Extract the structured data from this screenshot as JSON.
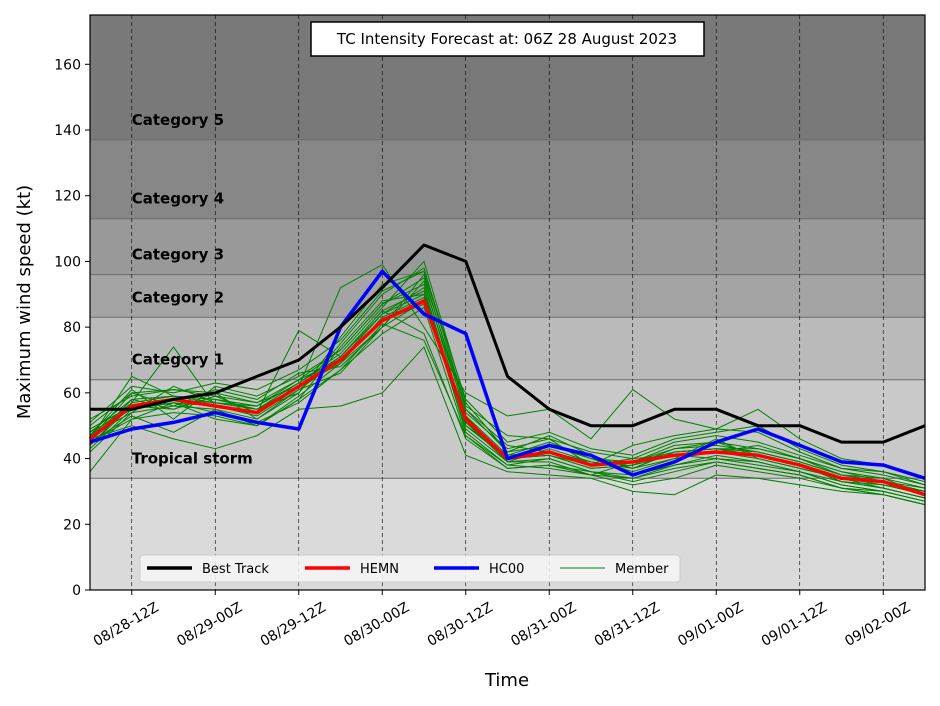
{
  "chart_data": {
    "type": "line",
    "title": "TC Intensity Forecast at: 06Z 28 August 2023",
    "xlabel": "Time",
    "ylabel": "Maximum wind speed (kt)",
    "ylim": [
      0,
      175
    ],
    "xlim": [
      -0.5,
      9.5
    ],
    "grid": "vertical dashed",
    "legend_position": "bottom-left",
    "x_ticks": [
      "08/28-12Z",
      "08/29-00Z",
      "08/29-12Z",
      "08/30-00Z",
      "08/30-12Z",
      "08/31-00Z",
      "08/31-12Z",
      "09/01-00Z",
      "09/01-12Z",
      "09/02-00Z"
    ],
    "y_ticks": [
      0,
      20,
      40,
      60,
      80,
      100,
      120,
      140,
      160
    ],
    "x": [
      -0.5,
      0,
      0.5,
      1,
      1.5,
      2,
      2.5,
      3,
      3.5,
      4,
      4.5,
      5,
      5.5,
      6,
      6.5,
      7,
      7.5,
      8,
      8.5,
      9,
      9.5
    ],
    "intensity_bands": [
      {
        "name": "Tropical storm",
        "min": 34,
        "max": 64,
        "color": "#c9c9c9"
      },
      {
        "name": "Category 1",
        "min": 64,
        "max": 83,
        "color": "#bababa"
      },
      {
        "name": "Category 2",
        "min": 83,
        "max": 96,
        "color": "#a4a4a4"
      },
      {
        "name": "Category 3",
        "min": 96,
        "max": 113,
        "color": "#999999"
      },
      {
        "name": "Category 4",
        "min": 113,
        "max": 137,
        "color": "#878787"
      },
      {
        "name": "Category 5",
        "min": 137,
        "max": 175,
        "color": "#797979"
      }
    ],
    "below_band_color": "#dadada",
    "series": [
      {
        "name": "Best Track",
        "color": "#000000",
        "width": 3,
        "values": [
          55,
          55,
          58,
          60,
          65,
          70,
          80,
          92,
          105,
          100,
          65,
          55,
          50,
          50,
          55,
          55,
          50,
          50,
          45,
          45,
          50
        ]
      },
      {
        "name": "HEMN",
        "color": "#ff0000",
        "width": 3.5,
        "values": [
          46,
          56,
          58,
          56,
          54,
          62,
          70,
          82,
          88,
          52,
          40,
          42,
          38,
          39,
          41,
          42,
          41,
          38,
          34,
          33,
          29
        ]
      },
      {
        "name": "HC00",
        "color": "#0000ff",
        "width": 3.5,
        "values": [
          45,
          49,
          51,
          54,
          51,
          49,
          80,
          97,
          84,
          78,
          40,
          44,
          41,
          35,
          39,
          45,
          49,
          44,
          39,
          38,
          34
        ]
      },
      {
        "name": "Member",
        "color": "#008000",
        "width": 1,
        "members": [
          [
            48,
            58,
            55,
            60,
            52,
            60,
            75,
            90,
            98,
            55,
            44,
            42,
            38,
            40,
            41,
            40,
            38,
            36,
            33,
            32,
            30
          ],
          [
            42,
            54,
            62,
            57,
            56,
            64,
            70,
            84,
            92,
            50,
            40,
            41,
            37,
            38,
            43,
            44,
            42,
            39,
            35,
            34,
            29
          ],
          [
            50,
            60,
            56,
            61,
            58,
            66,
            68,
            80,
            96,
            53,
            41,
            45,
            40,
            36,
            40,
            46,
            40,
            37,
            34,
            31,
            28
          ],
          [
            36,
            52,
            57,
            52,
            50,
            58,
            74,
            88,
            90,
            48,
            38,
            40,
            36,
            34,
            38,
            41,
            39,
            36,
            32,
            30,
            27
          ],
          [
            46,
            65,
            59,
            58,
            55,
            63,
            72,
            86,
            100,
            57,
            42,
            47,
            41,
            37,
            42,
            43,
            43,
            40,
            36,
            33,
            31
          ],
          [
            44,
            57,
            74,
            56,
            53,
            61,
            66,
            80,
            94,
            51,
            39,
            39,
            35,
            39,
            44,
            45,
            41,
            38,
            33,
            31,
            28
          ],
          [
            52,
            59,
            61,
            60,
            57,
            62,
            92,
            99,
            80,
            60,
            53,
            55,
            46,
            61,
            52,
            49,
            48,
            42,
            37,
            36,
            32
          ],
          [
            49,
            56,
            55,
            59,
            54,
            79,
            71,
            85,
            78,
            46,
            37,
            38,
            36,
            33,
            36,
            39,
            37,
            35,
            31,
            30,
            27
          ],
          [
            45,
            53,
            48,
            55,
            50,
            59,
            69,
            83,
            89,
            49,
            39,
            43,
            39,
            37,
            40,
            42,
            44,
            40,
            35,
            33,
            30
          ],
          [
            47,
            61,
            52,
            62,
            59,
            65,
            73,
            87,
            93,
            54,
            43,
            46,
            42,
            40,
            45,
            47,
            45,
            41,
            37,
            35,
            32
          ],
          [
            43,
            55,
            57,
            54,
            51,
            57,
            67,
            81,
            76,
            47,
            38,
            37,
            35,
            32,
            34,
            38,
            36,
            34,
            31,
            29,
            26
          ],
          [
            51,
            62,
            60,
            63,
            61,
            67,
            76,
            91,
            97,
            58,
            45,
            48,
            43,
            41,
            46,
            48,
            50,
            43,
            38,
            36,
            33
          ],
          [
            46,
            50,
            46,
            43,
            47,
            55,
            56,
            60,
            74,
            41,
            36,
            35,
            34,
            30,
            29,
            35,
            34,
            32,
            30,
            29,
            26
          ],
          [
            44,
            56,
            58,
            57,
            55,
            60,
            77,
            93,
            97,
            56,
            47,
            46,
            38,
            44,
            47,
            49,
            55,
            46,
            40,
            38,
            34
          ],
          [
            47,
            54,
            56,
            55,
            52,
            61,
            70,
            82,
            87,
            52,
            40,
            41,
            37,
            38,
            41,
            42,
            40,
            37,
            34,
            32,
            29
          ],
          [
            45,
            58,
            59,
            58,
            56,
            63,
            71,
            85,
            91,
            50,
            41,
            42,
            39,
            37,
            42,
            43,
            41,
            38,
            33,
            31,
            28
          ],
          [
            48,
            55,
            57,
            56,
            54,
            62,
            69,
            80,
            88,
            53,
            39,
            40,
            36,
            35,
            38,
            40,
            39,
            36,
            32,
            30,
            27
          ],
          [
            46,
            60,
            61,
            59,
            57,
            64,
            73,
            87,
            95,
            55,
            42,
            44,
            40,
            39,
            43,
            45,
            43,
            40,
            36,
            34,
            31
          ],
          [
            45,
            52,
            54,
            53,
            50,
            58,
            67,
            78,
            86,
            47,
            37,
            38,
            35,
            34,
            37,
            39,
            37,
            35,
            31,
            29,
            26
          ],
          [
            47,
            57,
            59,
            57,
            55,
            62,
            71,
            84,
            90,
            51,
            40,
            41,
            38,
            39,
            42,
            43,
            42,
            39,
            35,
            33,
            30
          ]
        ]
      }
    ]
  }
}
